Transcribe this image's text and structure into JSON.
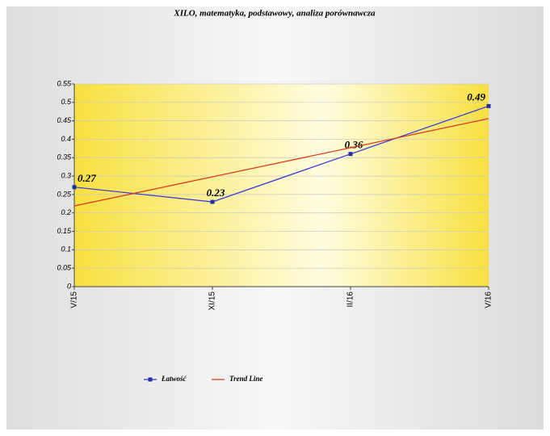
{
  "chart_data": {
    "type": "line",
    "title": "XILO, matematyka, podstawowy, analiza porównawcza",
    "categories": [
      "V/15",
      "XI/15",
      "II/16",
      "V/16"
    ],
    "series": [
      {
        "name": "Łatwość",
        "color": "#4040d8",
        "values": [
          0.27,
          0.23,
          0.36,
          0.49
        ],
        "labels": true
      },
      {
        "name": "Trend Line",
        "color": "#d84020",
        "values": [
          0.219,
          0.298,
          0.377,
          0.456
        ]
      }
    ],
    "ylim": [
      0,
      0.55
    ],
    "yticks": [
      0,
      0.05,
      0.1,
      0.15,
      0.2,
      0.25,
      0.3,
      0.35,
      0.4,
      0.45,
      0.5,
      0.55
    ],
    "grid": true
  }
}
